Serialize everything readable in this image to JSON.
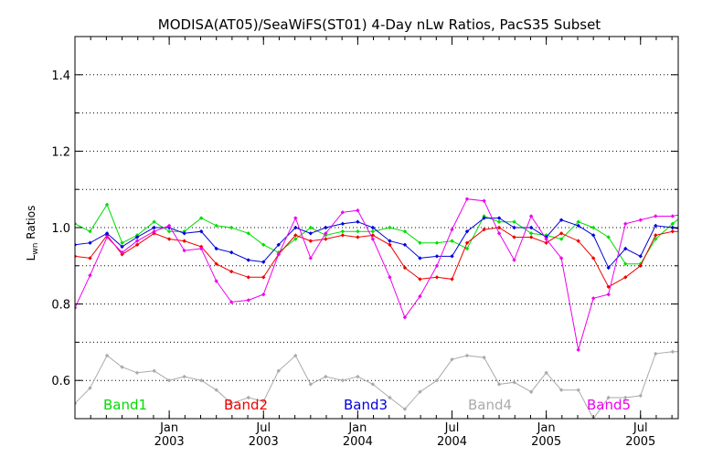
{
  "chart_data": {
    "type": "line",
    "title": "MODISA(AT05)/SeaWiFS(ST01) 4-Day nLw Ratios, PacS35 Subset",
    "ylabel_main": "L",
    "ylabel_sub": "wn",
    "ylabel_rest": " Ratios",
    "ylim": [
      0.5,
      1.5
    ],
    "xlim": [
      2002.5,
      2005.7
    ],
    "y_ticks": [
      0.6,
      0.8,
      1.0,
      1.2,
      1.4
    ],
    "y_tick_labels": [
      "0.6",
      "0.8",
      "1.0",
      "1.2",
      "1.4"
    ],
    "y_gridlines": [
      0.6,
      0.7,
      0.8,
      0.9,
      1.0,
      1.1,
      1.2,
      1.3,
      1.4
    ],
    "grid": "horizontal dotted",
    "x_ticks": [
      {
        "x": 2003.0,
        "month": "Jan",
        "year": "2003"
      },
      {
        "x": 2003.5,
        "month": "Jul",
        "year": "2003"
      },
      {
        "x": 2004.0,
        "month": "Jan",
        "year": "2004"
      },
      {
        "x": 2004.5,
        "month": "Jul",
        "year": "2004"
      },
      {
        "x": 2005.0,
        "month": "Jan",
        "year": "2005"
      },
      {
        "x": 2005.5,
        "month": "Jul",
        "year": "2005"
      }
    ],
    "x": [
      2002.5,
      2002.58,
      2002.67,
      2002.75,
      2002.83,
      2002.92,
      2003.0,
      2003.08,
      2003.17,
      2003.25,
      2003.33,
      2003.42,
      2003.5,
      2003.58,
      2003.67,
      2003.75,
      2003.83,
      2003.92,
      2004.0,
      2004.08,
      2004.17,
      2004.25,
      2004.33,
      2004.42,
      2004.5,
      2004.58,
      2004.67,
      2004.75,
      2004.83,
      2004.92,
      2005.0,
      2005.08,
      2005.17,
      2005.25,
      2005.33,
      2005.42,
      2005.5,
      2005.58,
      2005.67,
      2005.72
    ],
    "series": [
      {
        "name": "Band1",
        "color": "#00dd00",
        "values": [
          1.01,
          0.99,
          1.06,
          0.96,
          0.98,
          1.015,
          0.99,
          0.99,
          1.025,
          1.005,
          1.0,
          0.985,
          0.955,
          0.935,
          0.97,
          1.0,
          0.98,
          0.99,
          0.99,
          0.99,
          1.0,
          0.99,
          0.96,
          0.96,
          0.965,
          0.945,
          1.03,
          1.015,
          1.015,
          0.985,
          0.98,
          0.97,
          1.015,
          1.0,
          0.975,
          0.905,
          0.905,
          0.97,
          1.01,
          1.03
        ]
      },
      {
        "name": "Band2",
        "color": "#ee0000",
        "values": [
          0.925,
          0.92,
          0.98,
          0.93,
          0.955,
          0.985,
          0.97,
          0.965,
          0.95,
          0.905,
          0.885,
          0.87,
          0.87,
          0.93,
          0.98,
          0.965,
          0.97,
          0.98,
          0.975,
          0.98,
          0.955,
          0.895,
          0.865,
          0.87,
          0.865,
          0.96,
          0.995,
          1.0,
          0.975,
          0.975,
          0.96,
          0.985,
          0.965,
          0.92,
          0.845,
          0.87,
          0.9,
          0.98,
          0.99,
          0.99
        ]
      },
      {
        "name": "Band3",
        "color": "#0000dd",
        "values": [
          0.955,
          0.96,
          0.985,
          0.95,
          0.975,
          1.0,
          1.0,
          0.985,
          0.99,
          0.945,
          0.935,
          0.915,
          0.91,
          0.955,
          1.0,
          0.985,
          1.0,
          1.01,
          1.015,
          1.0,
          0.965,
          0.955,
          0.92,
          0.925,
          0.925,
          0.99,
          1.025,
          1.025,
          1.0,
          1.0,
          0.975,
          1.02,
          1.005,
          0.98,
          0.895,
          0.945,
          0.925,
          1.005,
          1.0,
          0.995
        ]
      },
      {
        "name": "Band4",
        "color": "#aaaaaa",
        "values": [
          0.54,
          0.58,
          0.665,
          0.635,
          0.62,
          0.625,
          0.6,
          0.61,
          0.6,
          0.575,
          0.54,
          0.555,
          0.545,
          0.625,
          0.665,
          0.59,
          0.61,
          0.6,
          0.61,
          0.59,
          0.555,
          0.525,
          0.57,
          0.6,
          0.655,
          0.665,
          0.66,
          0.59,
          0.595,
          0.57,
          0.62,
          0.575,
          0.575,
          0.5,
          0.555,
          0.555,
          0.56,
          0.67,
          0.675,
          0.675
        ]
      },
      {
        "name": "Band5",
        "color": "#ee00ee",
        "values": [
          0.79,
          0.875,
          0.975,
          0.935,
          0.965,
          0.99,
          1.005,
          0.94,
          0.945,
          0.86,
          0.805,
          0.81,
          0.825,
          0.93,
          1.025,
          0.92,
          0.985,
          1.04,
          1.045,
          0.97,
          0.87,
          0.765,
          0.82,
          0.9,
          0.995,
          1.075,
          1.07,
          0.985,
          0.915,
          1.03,
          0.97,
          0.92,
          0.68,
          0.815,
          0.825,
          1.01,
          1.02,
          1.03,
          1.03,
          1.035
        ]
      }
    ],
    "legend_placement": "bottom, inside plot"
  }
}
